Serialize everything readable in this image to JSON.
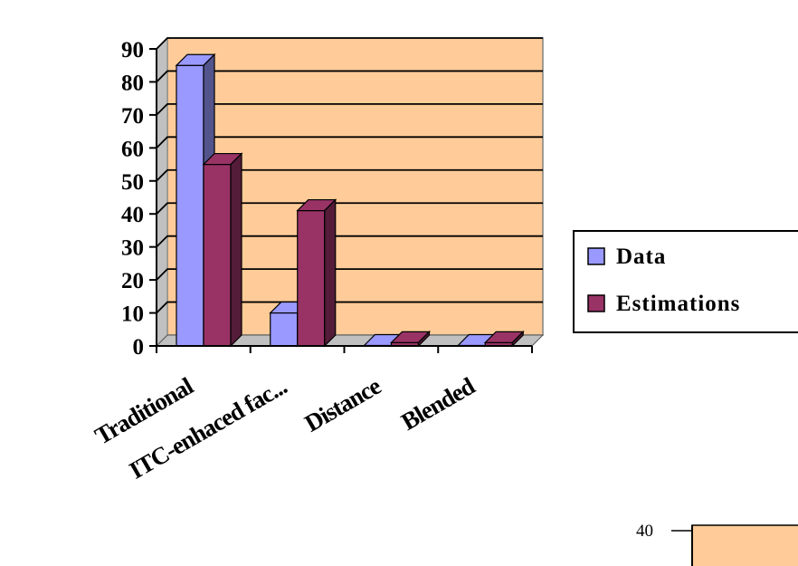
{
  "chart_data": {
    "type": "bar",
    "categories": [
      "Traditional",
      "ITC-enhaced fac...",
      "Distance",
      "Blended"
    ],
    "series": [
      {
        "name": "Data",
        "values": [
          85,
          10,
          0,
          0
        ],
        "color": "#9999FF"
      },
      {
        "name": "Estimations",
        "values": [
          55,
          41,
          1,
          1
        ],
        "color": "#993366"
      }
    ],
    "ylim": [
      0,
      90
    ],
    "yticks": [
      0,
      10,
      20,
      30,
      40,
      50,
      60,
      70,
      80,
      90
    ],
    "grid": true,
    "legend": "right",
    "plot_background": "#FFCC99"
  },
  "inset": {
    "tick_label": "40",
    "fill": "#FFCC99"
  }
}
